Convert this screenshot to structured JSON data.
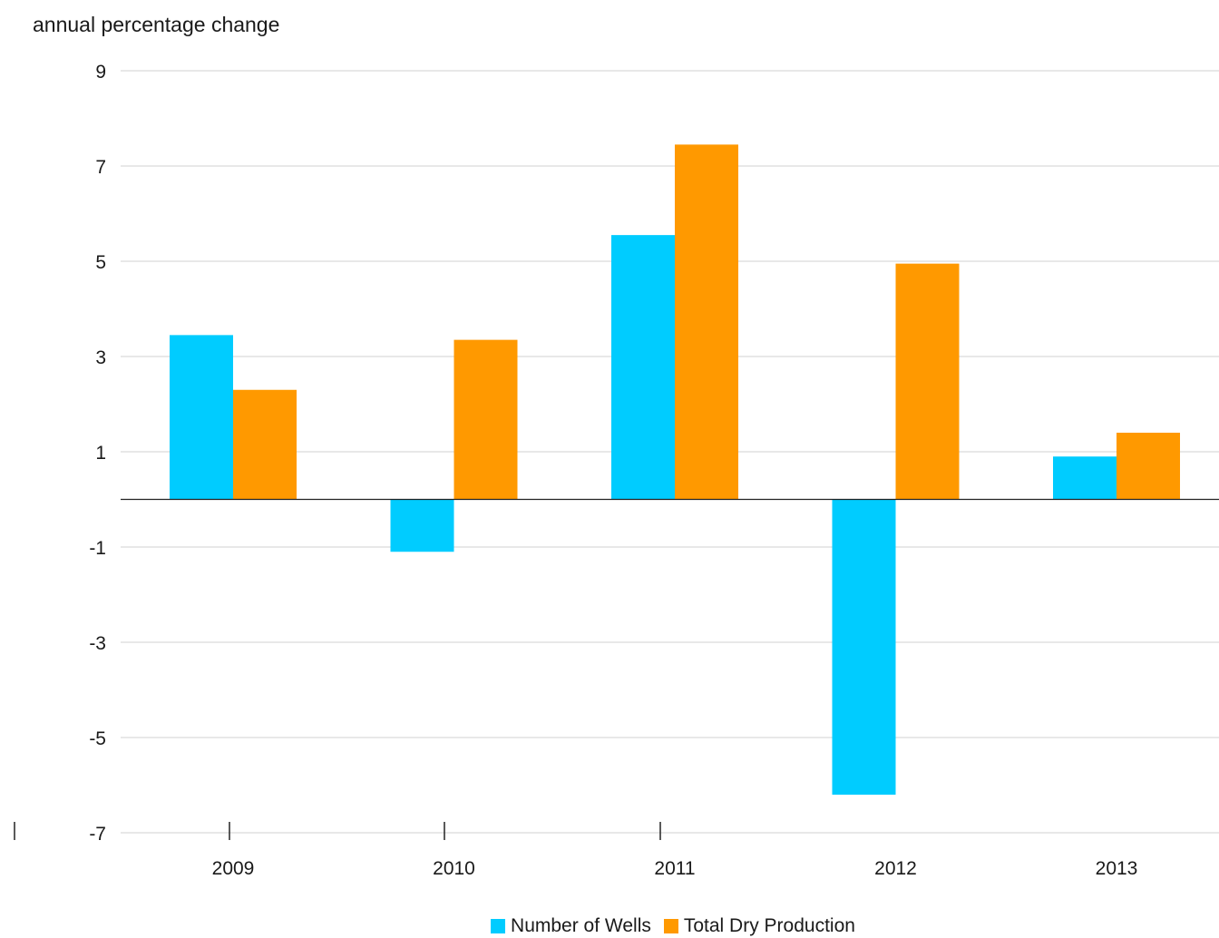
{
  "chart_data": {
    "type": "bar",
    "ylabel": "annual percentage change",
    "categories": [
      "2009",
      "2010",
      "2011",
      "2012",
      "2013"
    ],
    "series": [
      {
        "name": "Number of Wells",
        "color": "#00ccff",
        "values": [
          3.45,
          -1.1,
          5.55,
          -6.2,
          0.9
        ]
      },
      {
        "name": "Total Dry Production",
        "color": "#ff9900",
        "values": [
          2.3,
          3.35,
          7.45,
          4.95,
          1.4
        ]
      }
    ],
    "ylim": [
      -7,
      9
    ],
    "yticks": [
      "9",
      "7",
      "5",
      "3",
      "1",
      "-1",
      "-3",
      "-5",
      "-7"
    ],
    "grid": true,
    "legend_position": "bottom-center"
  }
}
